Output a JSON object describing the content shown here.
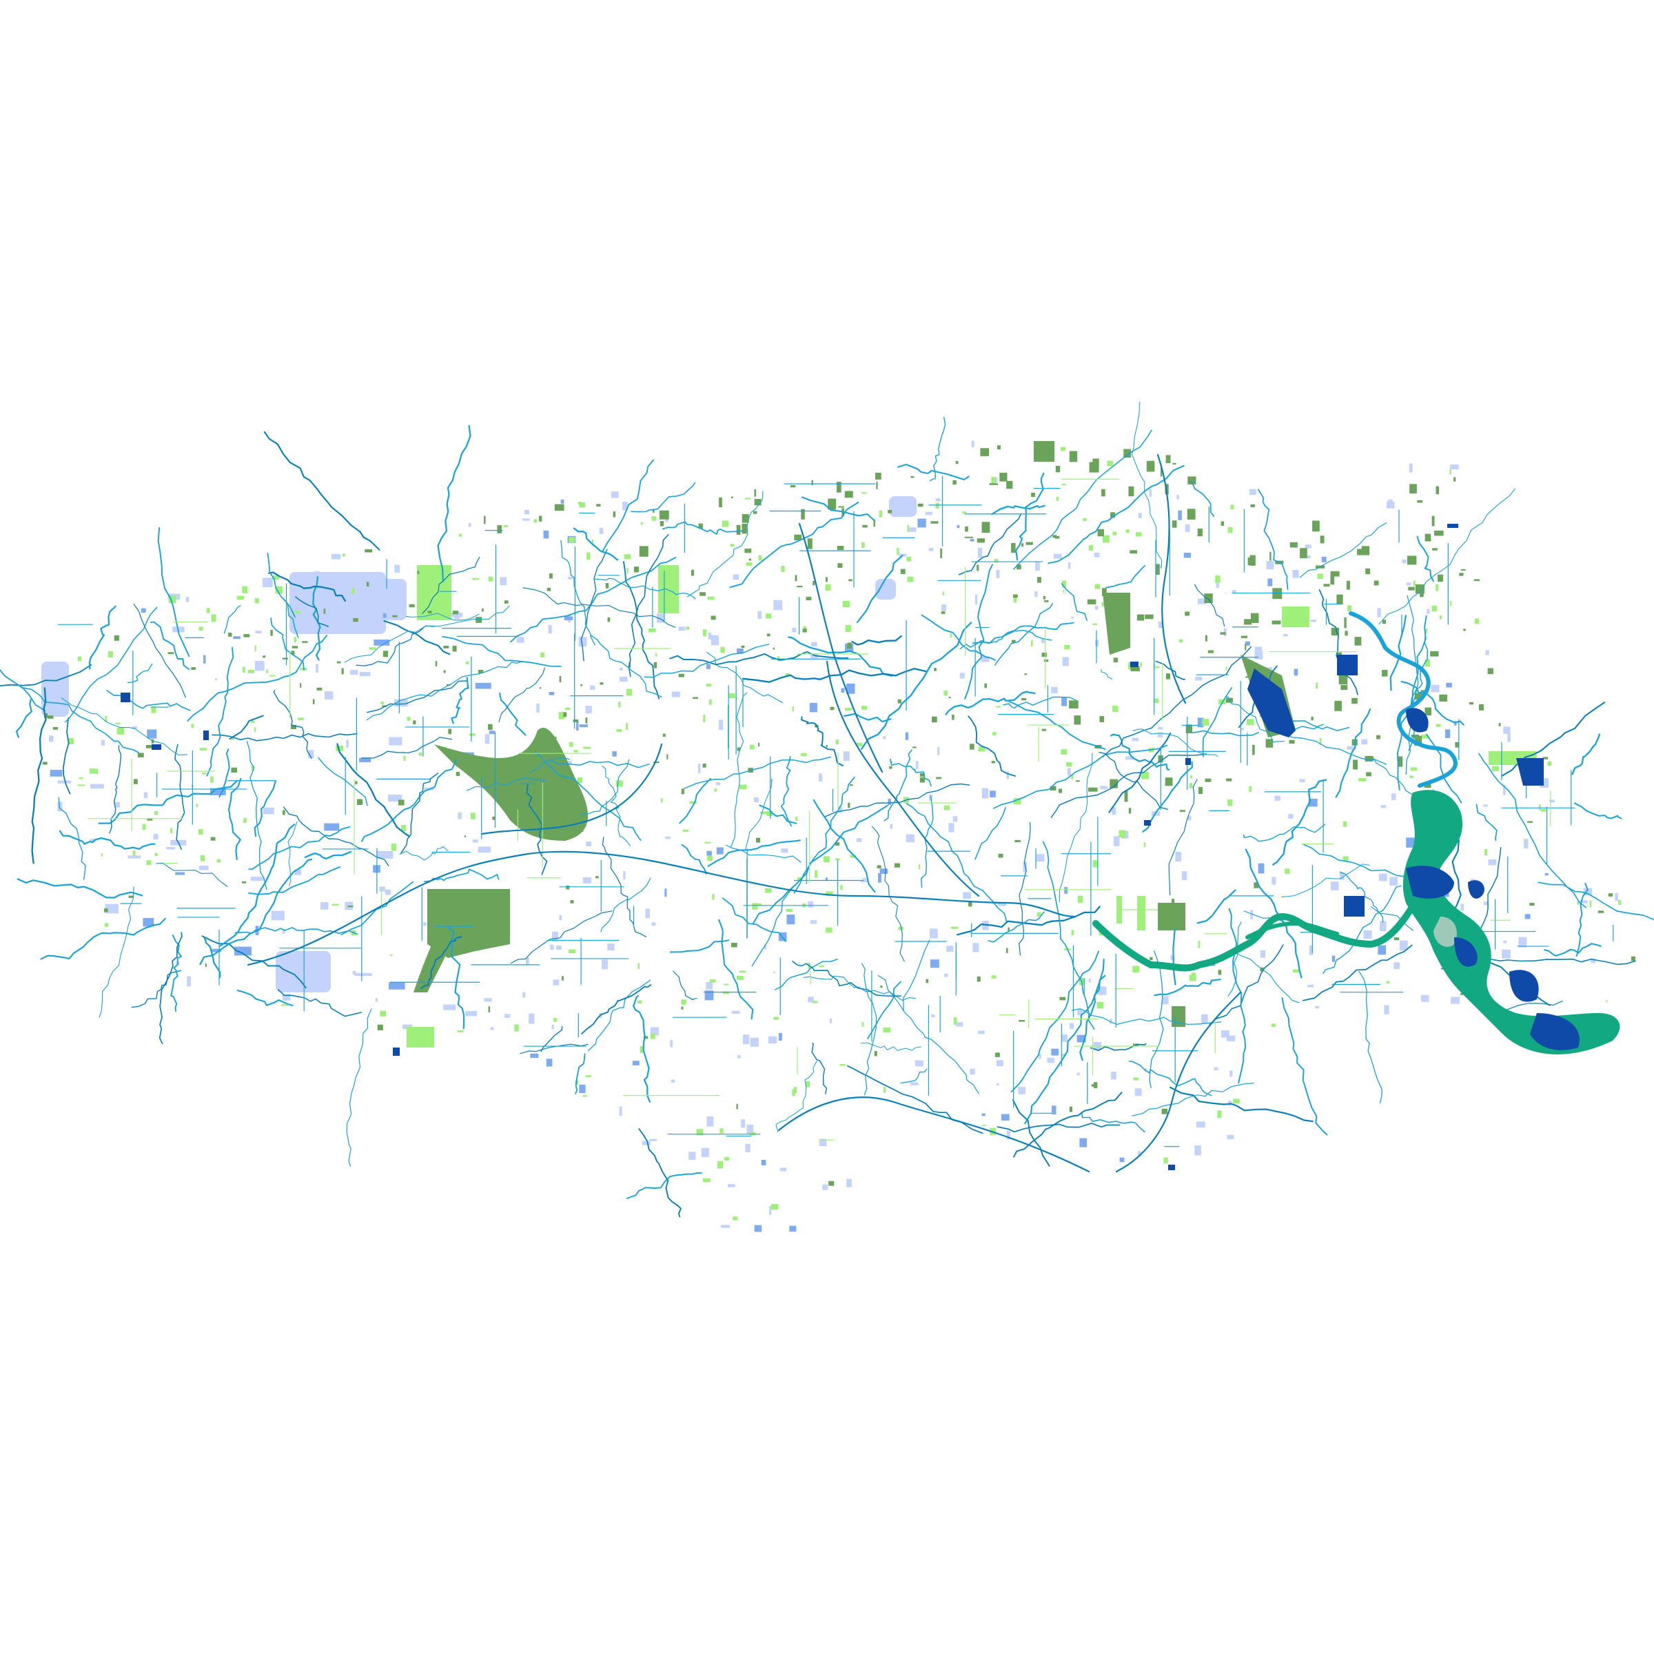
{
  "map": {
    "type": "watershed-hydrography",
    "labels": [],
    "colors": {
      "background": "#ffffff",
      "stream": "#1aa3d9",
      "stream_dark": "#0a7fb8",
      "main_channel": "#12a882",
      "forested_wetland": "#6aa35a",
      "emergent_wetland": "#9ef07a",
      "pond": "#c3d3fb",
      "pond_medium": "#7eaaf0",
      "lake": "#0f4aa8",
      "estuary_light": "#9ec9b8"
    },
    "layers": [
      {
        "id": "streams",
        "icon": "stream-line-icon"
      },
      {
        "id": "main-river",
        "icon": "river-channel-icon"
      },
      {
        "id": "forested-wetland",
        "icon": "wetland-patch-icon"
      },
      {
        "id": "emergent-wetland",
        "icon": "wetland-patch-icon"
      },
      {
        "id": "ponds",
        "icon": "pond-icon"
      },
      {
        "id": "lakes",
        "icon": "lake-icon"
      }
    ]
  }
}
